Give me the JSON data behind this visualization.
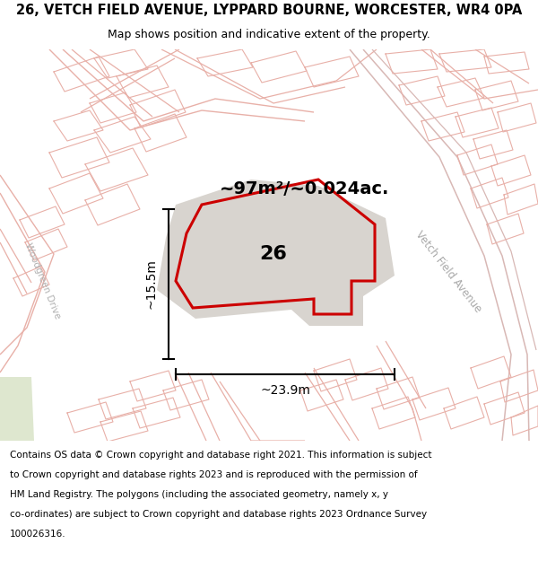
{
  "title": "26, VETCH FIELD AVENUE, LYPPARD BOURNE, WORCESTER, WR4 0PA",
  "subtitle": "Map shows position and indicative extent of the property.",
  "footer": "Contains OS data © Crown copyright and database right 2021. This information is subject to Crown copyright and database rights 2023 and is reproduced with the permission of HM Land Registry. The polygons (including the associated geometry, namely x, y co-ordinates) are subject to Crown copyright and database rights 2023 Ordnance Survey 100026316.",
  "area_label": "~97m²/~0.024ac.",
  "number_label": "26",
  "dim_width": "~23.9m",
  "dim_height": "~15.5m",
  "bg_color": "#f2eeea",
  "plot_fill": "#d8d4cf",
  "plot_outline": "#cc0000",
  "road_color": "#e8b0a8",
  "road_color2": "#f0c8c2",
  "vetch_label": "Vetch Field Avenue",
  "wg_label": "Woodgreen Drive",
  "title_fontsize": 10.5,
  "subtitle_fontsize": 9,
  "footer_fontsize": 7.5,
  "area_fontsize": 14,
  "number_fontsize": 16,
  "dim_fontsize": 10,
  "street_fontsize": 8.5
}
